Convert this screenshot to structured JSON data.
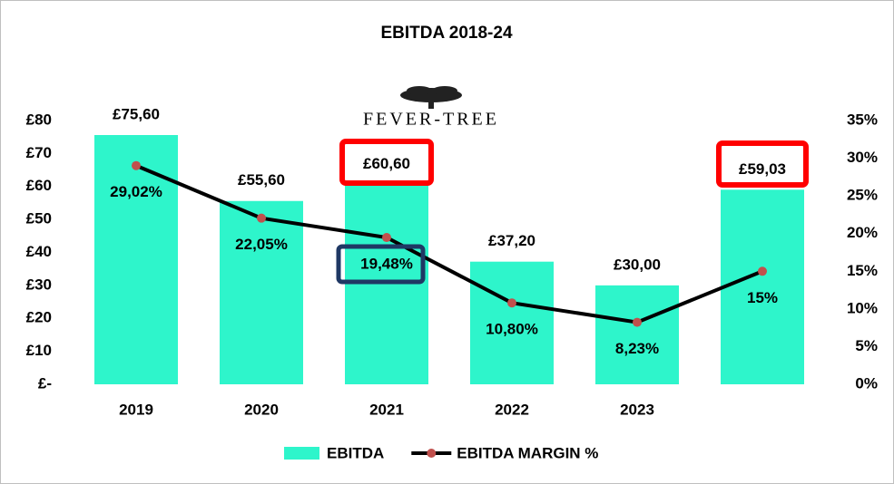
{
  "chart_data": {
    "type": "bar",
    "title": "EBITDA 2018-24",
    "logo": "FEVER-TREE",
    "categories": [
      "2019",
      "2020",
      "2021",
      "2022",
      "2023",
      null
    ],
    "series": [
      {
        "name": "EBITDA",
        "type": "bar",
        "color": "#2EF5CB",
        "values": [
          75.6,
          55.6,
          60.6,
          37.2,
          30.0,
          59.03
        ],
        "value_labels": [
          "£75,60",
          "£55,60",
          "£60,60",
          "£37,20",
          "£30,00",
          "£59,03"
        ]
      },
      {
        "name": "EBITDA MARGIN %",
        "type": "line",
        "axis": "y2",
        "color": "#000000",
        "marker_color": "#C0504D",
        "values": [
          29.02,
          22.05,
          19.48,
          10.8,
          8.23,
          15
        ],
        "value_labels": [
          "29,02%",
          "22,05%",
          "19,48%",
          "10,80%",
          "8,23%",
          "15%"
        ]
      }
    ],
    "ylim": [
      0,
      80
    ],
    "yticks": [
      {
        "value": 0,
        "label": "£-"
      },
      {
        "value": 10,
        "label": "£10"
      },
      {
        "value": 20,
        "label": "£20"
      },
      {
        "value": 30,
        "label": "£30"
      },
      {
        "value": 40,
        "label": "£40"
      },
      {
        "value": 50,
        "label": "£50"
      },
      {
        "value": 60,
        "label": "£60"
      },
      {
        "value": 70,
        "label": "£70"
      },
      {
        "value": 80,
        "label": "£80"
      }
    ],
    "y2lim": [
      0,
      35
    ],
    "y2ticks": [
      {
        "value": 0,
        "label": "0%"
      },
      {
        "value": 5,
        "label": "5%"
      },
      {
        "value": 10,
        "label": "10%"
      },
      {
        "value": 15,
        "label": "15%"
      },
      {
        "value": 20,
        "label": "20%"
      },
      {
        "value": 25,
        "label": "25%"
      },
      {
        "value": 30,
        "label": "30%"
      },
      {
        "value": 35,
        "label": "35%"
      }
    ],
    "legend": "bottom"
  }
}
